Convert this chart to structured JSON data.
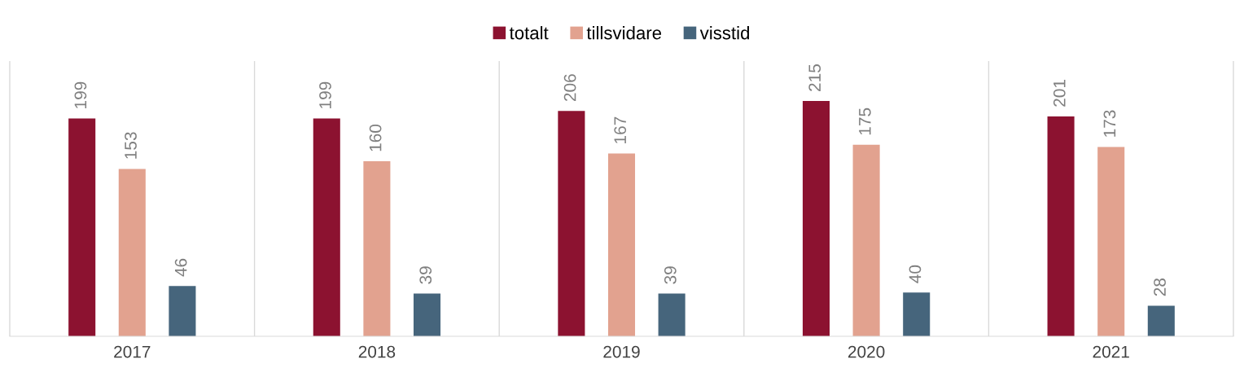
{
  "chart_data": {
    "type": "bar",
    "categories": [
      "2017",
      "2018",
      "2019",
      "2020",
      "2021"
    ],
    "series": [
      {
        "name": "totalt",
        "color": "#8c1230",
        "values": [
          199,
          199,
          206,
          215,
          201
        ]
      },
      {
        "name": "tillsvidare",
        "color": "#e2a28f",
        "values": [
          153,
          160,
          167,
          175,
          173
        ]
      },
      {
        "name": "visstid",
        "color": "#46657c",
        "values": [
          46,
          39,
          39,
          40,
          28
        ]
      }
    ],
    "data_labels": true,
    "legend": "top"
  }
}
